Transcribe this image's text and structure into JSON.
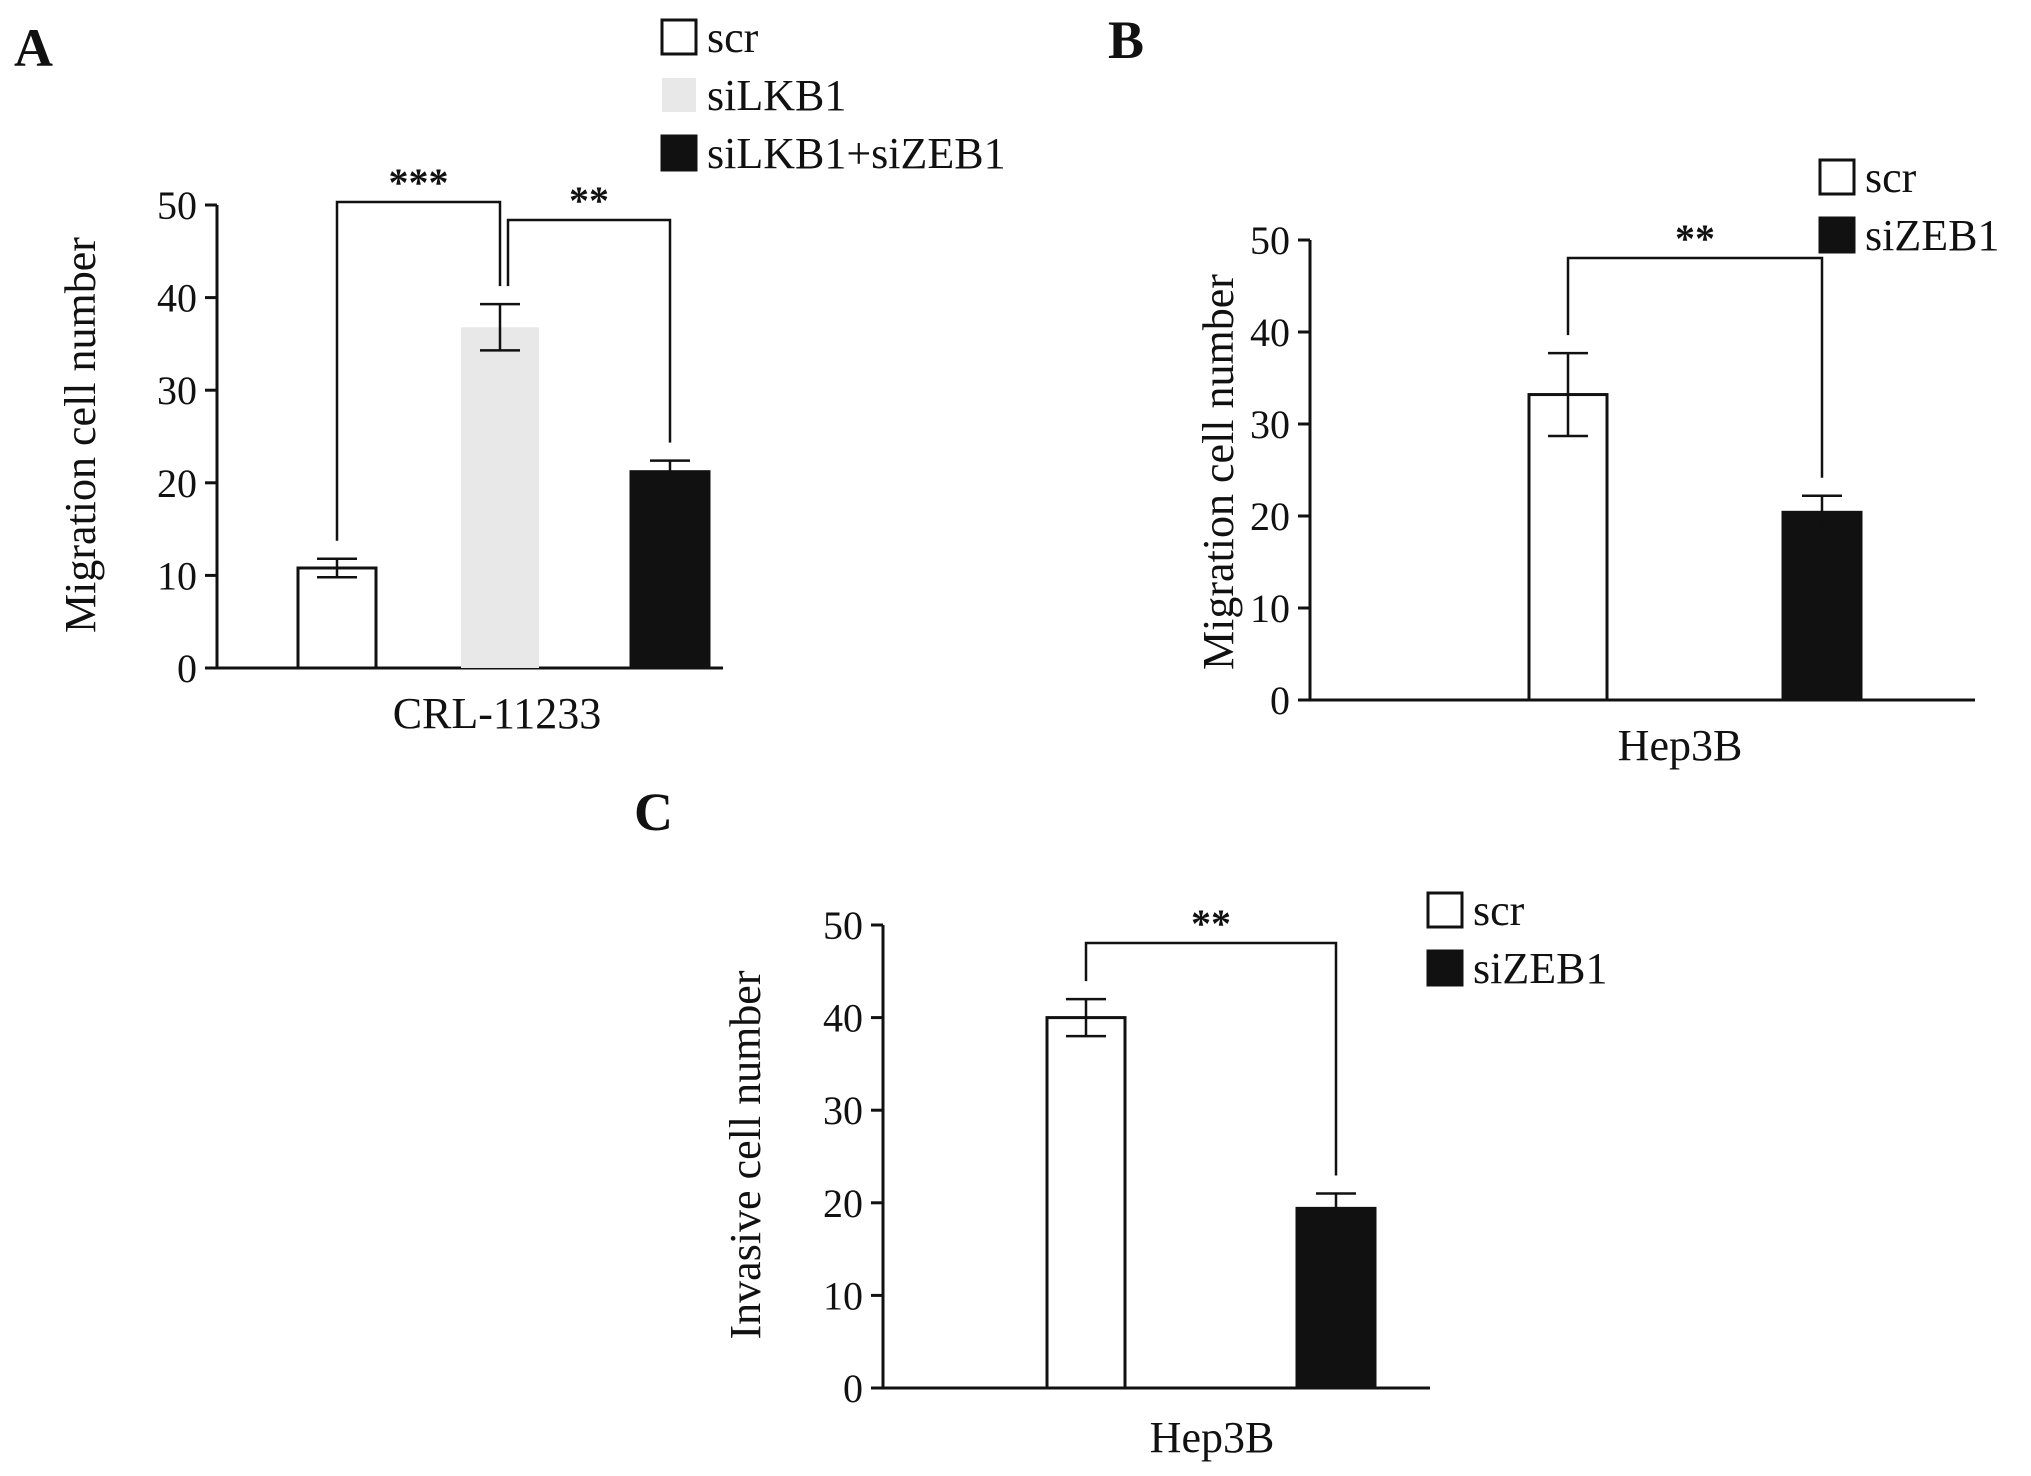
{
  "chart_data": [
    {
      "panel": "A",
      "type": "bar",
      "ylabel": "Migration cell number",
      "xlabel": "CRL-11233",
      "ylim": [
        0,
        50
      ],
      "yticks": [
        0,
        10,
        20,
        30,
        40,
        50
      ],
      "grid": false,
      "legend_position": "top-right",
      "series": [
        {
          "name": "scr",
          "value": 10.8,
          "error": 1.0,
          "color": "#ffffff"
        },
        {
          "name": "siLKB1",
          "value": 36.8,
          "error": 2.5,
          "color": "#e8e8e8"
        },
        {
          "name": "siLKB1+siZEB1",
          "value": 21.2,
          "error": 1.2,
          "color": "#111111"
        }
      ],
      "significance": [
        {
          "from": 0,
          "to": 1,
          "label": "***"
        },
        {
          "from": 1,
          "to": 2,
          "label": "**"
        }
      ]
    },
    {
      "panel": "B",
      "type": "bar",
      "ylabel": "Migration cell number",
      "xlabel": "Hep3B",
      "ylim": [
        0,
        50
      ],
      "yticks": [
        0,
        10,
        20,
        30,
        40,
        50
      ],
      "grid": false,
      "legend_position": "top-right",
      "series": [
        {
          "name": "scr",
          "value": 33.2,
          "error": 4.5,
          "color": "#ffffff"
        },
        {
          "name": "siZEB1",
          "value": 20.4,
          "error": 1.8,
          "color": "#111111"
        }
      ],
      "significance": [
        {
          "from": 0,
          "to": 1,
          "label": "**"
        }
      ]
    },
    {
      "panel": "C",
      "type": "bar",
      "ylabel": "Invasive cell number",
      "xlabel": "Hep3B",
      "ylim": [
        0,
        50
      ],
      "yticks": [
        0,
        10,
        20,
        30,
        40,
        50
      ],
      "grid": false,
      "legend_position": "top-right",
      "series": [
        {
          "name": "scr",
          "value": 40.0,
          "error": 2.0,
          "color": "#ffffff"
        },
        {
          "name": "siZEB1",
          "value": 19.4,
          "error": 1.6,
          "color": "#111111"
        }
      ],
      "significance": [
        {
          "from": 0,
          "to": 1,
          "label": "**"
        }
      ]
    }
  ]
}
